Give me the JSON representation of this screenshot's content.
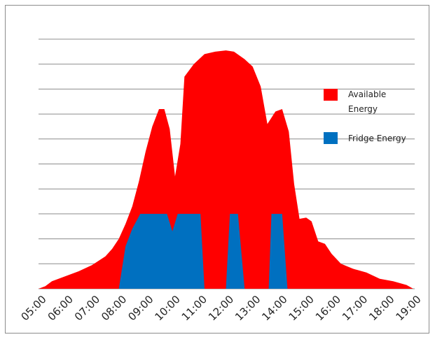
{
  "chart_data": {
    "type": "area",
    "title": "",
    "xlabel": "",
    "ylabel": "",
    "x_ticks": [
      "05:00",
      "06:00",
      "07:00",
      "08:00",
      "09:00",
      "10:00",
      "11:00",
      "12:00",
      "13:00",
      "14:00",
      "15:00",
      "16:00",
      "17:00",
      "18:00",
      "19:00"
    ],
    "x_range_hours": [
      5,
      19
    ],
    "ylim": [
      0,
      10
    ],
    "grid": true,
    "legend_position": "right",
    "series": [
      {
        "name": "Available Energy",
        "color": "#ff0000",
        "points": [
          [
            5.0,
            0.0
          ],
          [
            5.25,
            0.1
          ],
          [
            5.5,
            0.3
          ],
          [
            6.0,
            0.5
          ],
          [
            6.5,
            0.7
          ],
          [
            7.0,
            0.95
          ],
          [
            7.5,
            1.3
          ],
          [
            7.75,
            1.6
          ],
          [
            8.0,
            2.0
          ],
          [
            8.25,
            2.6
          ],
          [
            8.5,
            3.3
          ],
          [
            8.75,
            4.3
          ],
          [
            9.0,
            5.5
          ],
          [
            9.25,
            6.5
          ],
          [
            9.5,
            7.2
          ],
          [
            9.7,
            7.2
          ],
          [
            9.9,
            6.4
          ],
          [
            10.1,
            4.5
          ],
          [
            10.3,
            5.8
          ],
          [
            10.45,
            8.5
          ],
          [
            10.8,
            9.0
          ],
          [
            11.2,
            9.4
          ],
          [
            11.6,
            9.5
          ],
          [
            12.0,
            9.55
          ],
          [
            12.3,
            9.5
          ],
          [
            12.7,
            9.2
          ],
          [
            13.0,
            8.9
          ],
          [
            13.3,
            8.1
          ],
          [
            13.55,
            6.6
          ],
          [
            13.85,
            7.1
          ],
          [
            14.1,
            7.2
          ],
          [
            14.35,
            6.3
          ],
          [
            14.55,
            4.2
          ],
          [
            14.75,
            2.8
          ],
          [
            15.0,
            2.85
          ],
          [
            15.2,
            2.7
          ],
          [
            15.45,
            1.9
          ],
          [
            15.7,
            1.8
          ],
          [
            15.95,
            1.4
          ],
          [
            16.3,
            1.0
          ],
          [
            16.75,
            0.8
          ],
          [
            17.25,
            0.65
          ],
          [
            17.75,
            0.4
          ],
          [
            18.25,
            0.3
          ],
          [
            18.75,
            0.15
          ],
          [
            19.0,
            0.0
          ]
        ]
      },
      {
        "name": "Fridge Energy",
        "color": "#0070c0",
        "points": [
          [
            8.0,
            0.0
          ],
          [
            8.25,
            1.7
          ],
          [
            8.5,
            2.4
          ],
          [
            8.8,
            3.0
          ],
          [
            9.8,
            3.0
          ],
          [
            10.0,
            2.3
          ],
          [
            10.2,
            3.0
          ],
          [
            11.05,
            3.0
          ],
          [
            11.2,
            0.0
          ],
          [
            12.0,
            0.0
          ],
          [
            12.0,
            0.0
          ],
          [
            12.15,
            3.0
          ],
          [
            12.45,
            3.0
          ],
          [
            12.7,
            0.0
          ],
          [
            13.6,
            0.0
          ],
          [
            13.7,
            3.0
          ],
          [
            14.1,
            3.0
          ],
          [
            14.3,
            0.0
          ]
        ]
      }
    ]
  }
}
